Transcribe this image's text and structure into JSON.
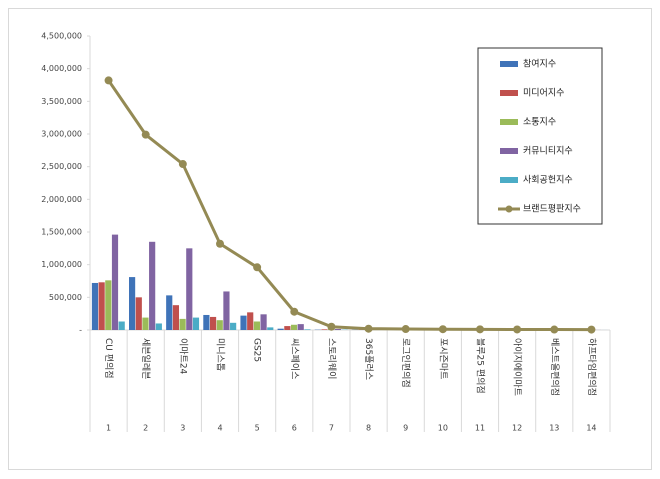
{
  "chart_data": {
    "type": "bar",
    "categories": [
      "CU 편의점",
      "세븐일레븐",
      "이마트24",
      "미니스톱",
      "GS25",
      "씨스페이스",
      "스토리웨이",
      "365플러스",
      "로그인편의점",
      "포시즌마트",
      "블루25 편의점",
      "아이지에이마트",
      "베스트올편의점",
      "하프타임편의점"
    ],
    "ranks": [
      1,
      2,
      3,
      4,
      5,
      6,
      7,
      8,
      9,
      10,
      11,
      12,
      13,
      14
    ],
    "series": [
      {
        "name": "참여지수",
        "color": "#3f73b8",
        "values": [
          720000,
          810000,
          530000,
          230000,
          220000,
          20000,
          5000,
          3000,
          2000,
          2000,
          1500,
          1500,
          1000,
          1000
        ]
      },
      {
        "name": "미디어지수",
        "color": "#c0504d",
        "values": [
          730000,
          500000,
          380000,
          200000,
          270000,
          60000,
          10000,
          5000,
          4000,
          3000,
          3000,
          2000,
          2000,
          2000
        ]
      },
      {
        "name": "소통지수",
        "color": "#9bbb59",
        "values": [
          760000,
          190000,
          170000,
          150000,
          130000,
          80000,
          15000,
          5000,
          4000,
          3000,
          2000,
          2000,
          2000,
          1500
        ]
      },
      {
        "name": "커뮤니티지수",
        "color": "#8064a2",
        "values": [
          1460000,
          1350000,
          1250000,
          590000,
          240000,
          90000,
          15000,
          5000,
          4000,
          3000,
          2500,
          2000,
          1500,
          1000
        ]
      },
      {
        "name": "사회공헌지수",
        "color": "#4bacc6",
        "values": [
          130000,
          100000,
          190000,
          110000,
          40000,
          10000,
          5000,
          2000,
          1000,
          1000,
          1000,
          500,
          500,
          500
        ]
      },
      {
        "name": "브랜드평판지수",
        "color": "#948a54",
        "type": "line",
        "values": [
          3820000,
          2990000,
          2540000,
          1320000,
          960000,
          280000,
          50000,
          20000,
          15000,
          12000,
          10000,
          8000,
          7000,
          6000
        ]
      }
    ],
    "ylim": [
      0,
      4500000
    ],
    "yticks": [
      {
        "value": 0,
        "label": "-"
      },
      {
        "value": 500000,
        "label": "500,000"
      },
      {
        "value": 1000000,
        "label": "1,000,000"
      },
      {
        "value": 1500000,
        "label": "1,500,000"
      },
      {
        "value": 2000000,
        "label": "2,000,000"
      },
      {
        "value": 2500000,
        "label": "2,500,000"
      },
      {
        "value": 3000000,
        "label": "3,000,000"
      },
      {
        "value": 3500000,
        "label": "3,500,000"
      },
      {
        "value": 4000000,
        "label": "4,000,000"
      },
      {
        "value": 4500000,
        "label": "4,500,000"
      }
    ],
    "legend": "top-right"
  }
}
